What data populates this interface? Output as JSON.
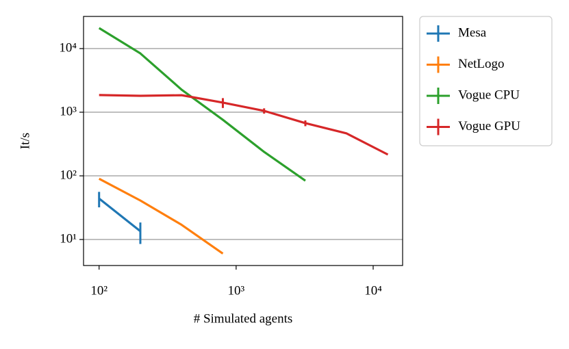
{
  "chart_data": {
    "type": "line",
    "xlabel": "# Simulated agents",
    "ylabel": "It/s",
    "xscale": "log",
    "yscale": "log",
    "xlim": [
      77,
      16400
    ],
    "ylim": [
      3.9,
      32000
    ],
    "xticks": [
      {
        "value": 100,
        "label": "10²"
      },
      {
        "value": 1000,
        "label": "10³"
      },
      {
        "value": 10000,
        "label": "10⁴"
      }
    ],
    "yticks": [
      {
        "value": 10,
        "label": "10¹"
      },
      {
        "value": 100,
        "label": "10²"
      },
      {
        "value": 1000,
        "label": "10³"
      },
      {
        "value": 10000,
        "label": "10⁴"
      }
    ],
    "grid": "y",
    "legend": "outside upper right",
    "series": [
      {
        "name": "Mesa",
        "color": "#1f77b4",
        "x": [
          100,
          200
        ],
        "values": [
          44,
          13.5
        ],
        "errors": [
          12,
          5
        ]
      },
      {
        "name": "NetLogo",
        "color": "#ff7f0e",
        "x": [
          100,
          200,
          400,
          800
        ],
        "values": [
          90,
          41,
          17,
          6
        ],
        "errors": [
          null,
          null,
          null,
          null
        ]
      },
      {
        "name": "Vogue CPU",
        "color": "#2ca02c",
        "x": [
          100,
          200,
          400,
          800,
          1600,
          3200
        ],
        "values": [
          21000,
          8400,
          2260,
          760,
          238,
          84
        ],
        "errors": [
          null,
          null,
          null,
          null,
          null,
          null
        ]
      },
      {
        "name": "Vogue GPU",
        "color": "#d62728",
        "x": [
          100,
          200,
          400,
          800,
          1600,
          3200,
          6400,
          12800
        ],
        "values": [
          1860,
          1810,
          1850,
          1415,
          1050,
          673,
          464,
          216
        ],
        "errors": [
          null,
          null,
          null,
          250,
          100,
          70,
          null,
          null
        ]
      }
    ]
  }
}
